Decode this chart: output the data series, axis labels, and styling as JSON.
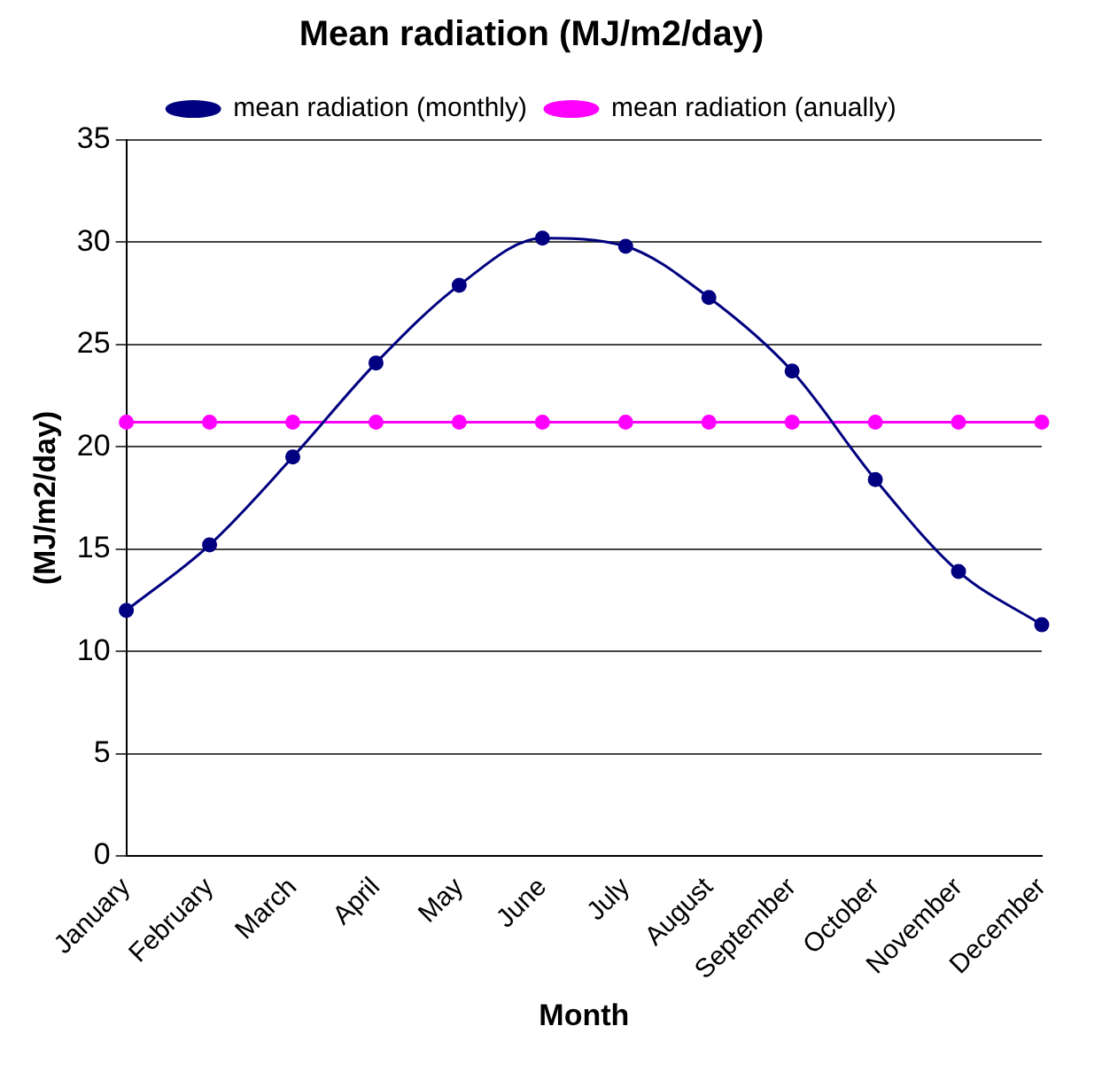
{
  "chart_data": {
    "type": "line",
    "title": "Mean radiation (MJ/m2/day)",
    "xlabel": "Month",
    "ylabel": "(MJ/m2/day)",
    "categories": [
      "January",
      "February",
      "March",
      "April",
      "May",
      "June",
      "July",
      "August",
      "September",
      "October",
      "November",
      "December"
    ],
    "series": [
      {
        "name": "mean radiation (monthly)",
        "color": "#000080",
        "values": [
          12,
          15.2,
          19.5,
          24.1,
          27.9,
          30.2,
          29.8,
          27.3,
          23.7,
          18.4,
          13.9,
          11.3
        ]
      },
      {
        "name": "mean radiation (anually)",
        "color": "#ff00ff",
        "values": [
          21.2,
          21.2,
          21.2,
          21.2,
          21.2,
          21.2,
          21.2,
          21.2,
          21.2,
          21.2,
          21.2,
          21.2
        ]
      }
    ],
    "ylim": [
      0,
      35
    ],
    "yticks": [
      0,
      5,
      10,
      15,
      20,
      25,
      30,
      35
    ],
    "grid": "y",
    "legend": "top",
    "marker": "circle",
    "line_style": "solid"
  }
}
